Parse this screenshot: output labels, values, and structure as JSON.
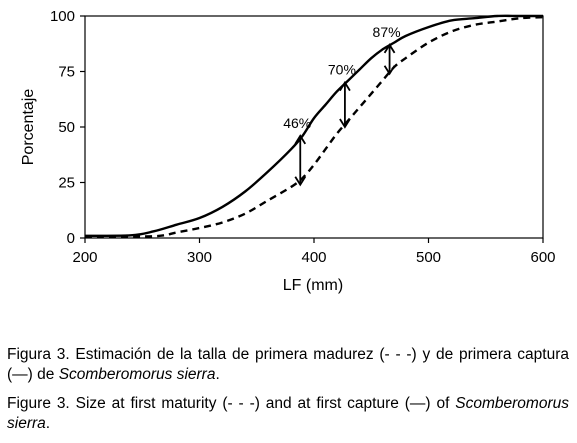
{
  "chart_data": {
    "type": "line",
    "xlabel": "LF (mm)",
    "ylabel": "Porcentaje",
    "xlim": [
      200,
      600
    ],
    "ylim": [
      0,
      100
    ],
    "xticks": [
      200,
      300,
      400,
      500,
      600
    ],
    "yticks": [
      0,
      25,
      50,
      75,
      100
    ],
    "grid": false,
    "series": [
      {
        "style": "solid",
        "x": [
          200,
          240,
          260,
          280,
          300,
          320,
          340,
          360,
          380,
          390,
          400,
          410,
          420,
          430,
          440,
          450,
          460,
          470,
          480,
          500,
          520,
          540,
          560,
          580,
          600
        ],
        "y": [
          1,
          1.2,
          3,
          6,
          9,
          14,
          21,
          30,
          40,
          46,
          54,
          60,
          66,
          71,
          76,
          81,
          85,
          88,
          91,
          95,
          98,
          99,
          100,
          100,
          100
        ]
      },
      {
        "style": "dashed",
        "x": [
          200,
          260,
          280,
          300,
          320,
          340,
          360,
          380,
          390,
          400,
          410,
          420,
          430,
          440,
          450,
          460,
          470,
          480,
          500,
          520,
          540,
          560,
          580,
          600
        ],
        "y": [
          0.5,
          0.8,
          2.5,
          4.5,
          7,
          11,
          17,
          23,
          27,
          33,
          40,
          47,
          53,
          59,
          65,
          71,
          77,
          81,
          88,
          93,
          96,
          97.5,
          99,
          99.5
        ]
      }
    ],
    "annotations": [
      {
        "text": "46%",
        "x": 388,
        "y_top": 46,
        "y_bottom": 24
      },
      {
        "text": "70%",
        "x": 427,
        "y_top": 70,
        "y_bottom": 50
      },
      {
        "text": "87%",
        "x": 466,
        "y_top": 87,
        "y_bottom": 74
      }
    ]
  },
  "caption": {
    "es_label": "Figura 3.",
    "es_text": " Estimación de la talla de primera madurez (- - -) y de primera captura (—) de ",
    "es_species": "Scomberomorus sierra",
    "es_end": ".",
    "en_label": "Figure 3.",
    "en_text": " Size at first maturity (- - -) and at first capture (—) of ",
    "en_species": "Scomberomorus sierra",
    "en_end": "."
  }
}
